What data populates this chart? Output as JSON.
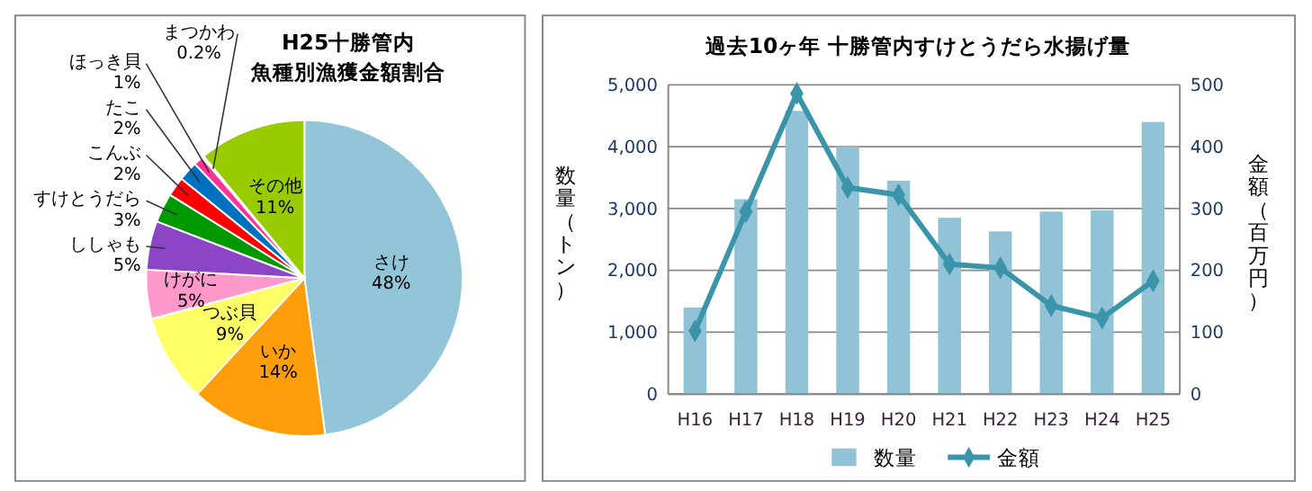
{
  "chart_data": [
    {
      "type": "pie",
      "title": "H25十勝管内",
      "subtitle": "魚種別漁獲金額割合",
      "categories": [
        "さけ",
        "いか",
        "つぶ貝",
        "けがに",
        "ししゃも",
        "すけとうだら",
        "こんぶ",
        "たこ",
        "ほっき貝",
        "まつかわ",
        "その他"
      ],
      "values": [
        48,
        14,
        9,
        5,
        5,
        3,
        2,
        2,
        1,
        0.2,
        11
      ],
      "value_labels": [
        "48%",
        "14%",
        "9%",
        "5%",
        "5%",
        "3%",
        "2%",
        "2%",
        "1%",
        "0.2%",
        "11%"
      ],
      "colors": [
        "#92c5d8",
        "#ff9d0a",
        "#ffff66",
        "#ff99cc",
        "#8b45c6",
        "#009900",
        "#ff0000",
        "#0070c0",
        "#ff3399",
        "#ffffff",
        "#99cc00"
      ]
    },
    {
      "type": "bar",
      "title": "過去10ヶ年 十勝管内すけとうだら水揚げ量",
      "ylabel": "数量（トン）",
      "y2label": "金額（百万円）",
      "categories": [
        "H16",
        "H17",
        "H18",
        "H19",
        "H20",
        "H21",
        "H22",
        "H23",
        "H24",
        "H25"
      ],
      "series": [
        {
          "name": "数量",
          "type": "bar",
          "color": "#92c2d5",
          "values": [
            1400,
            3150,
            4580,
            4000,
            3450,
            2850,
            2630,
            2950,
            2970,
            4400
          ]
        },
        {
          "name": "金額",
          "type": "line",
          "axis": "y2",
          "color": "#3b95aa",
          "marker": "diamond",
          "values": [
            102,
            295,
            486,
            334,
            322,
            210,
            204,
            143,
            123,
            183
          ]
        }
      ],
      "ylim": [
        0,
        5000
      ],
      "yticks": [
        {
          "value": 0,
          "label": "0"
        },
        {
          "value": 1000,
          "label": "1,000"
        },
        {
          "value": 2000,
          "label": "2,000"
        },
        {
          "value": 3000,
          "label": "3,000"
        },
        {
          "value": 4000,
          "label": "4,000"
        },
        {
          "value": 5000,
          "label": "5,000"
        }
      ],
      "y2lim": [
        0,
        500
      ],
      "y2ticks": [
        0,
        100,
        200,
        300,
        400,
        500
      ],
      "grid": "y",
      "legend": "bottom"
    }
  ]
}
